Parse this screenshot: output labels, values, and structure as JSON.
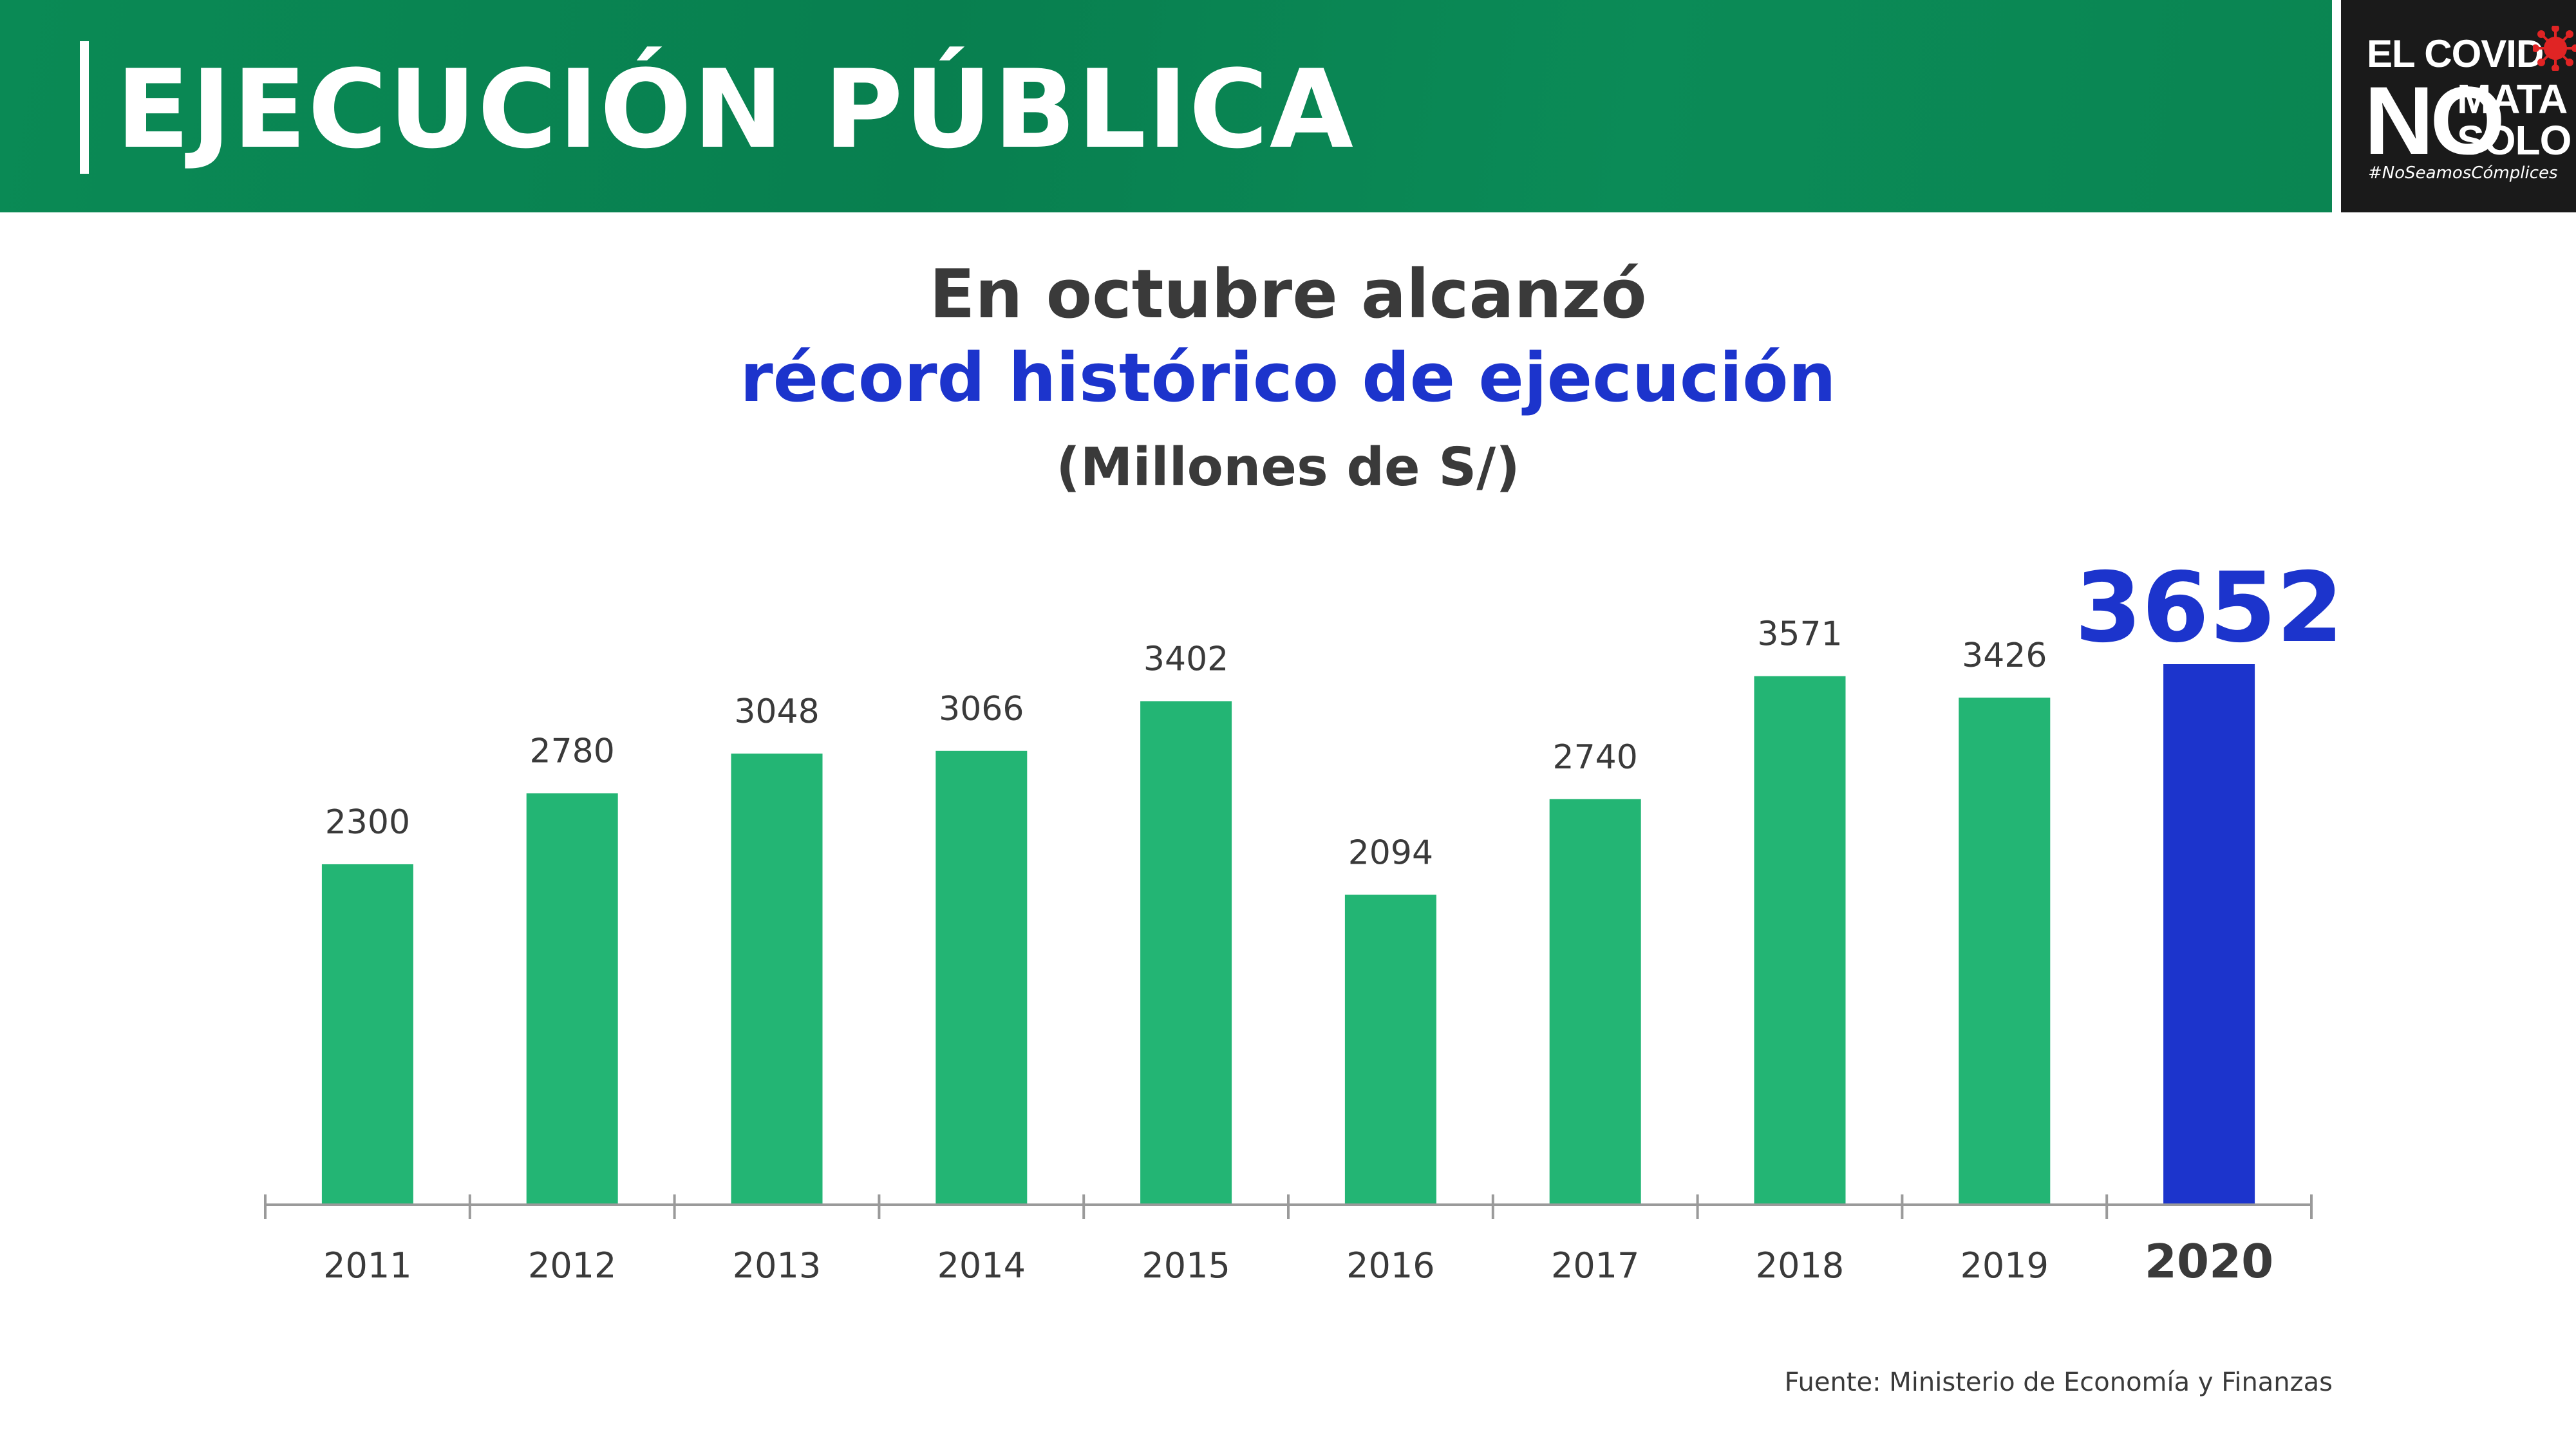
{
  "header": {
    "title": "EJECUCIÓN PÚBLICA"
  },
  "logo": {
    "line1": "EL COVID",
    "no": "NO",
    "mata": "MATA",
    "solo": "SOLO",
    "hashtag": "#NoSeamosCómplices",
    "icon": "virus-icon"
  },
  "colors": {
    "header_green": "#087f4f",
    "bar_green": "#23b574",
    "highlight_blue": "#1c34cc",
    "text_dark": "#3a3a3a"
  },
  "chart_data": {
    "type": "bar",
    "title": "En octubre alcanzó",
    "title_highlight": "récord histórico de ejecución",
    "subtitle": "(Millones de S/)",
    "categories": [
      "2011",
      "2012",
      "2013",
      "2014",
      "2015",
      "2016",
      "2017",
      "2018",
      "2019",
      "2020"
    ],
    "values": [
      2300,
      2780,
      3048,
      3066,
      3402,
      2094,
      2740,
      3571,
      3426,
      3652
    ],
    "highlight_index": 9,
    "ylim": [
      0,
      4000
    ],
    "grid": false,
    "legend": "none"
  },
  "source": "Fuente: Ministerio de Economía y Finanzas"
}
